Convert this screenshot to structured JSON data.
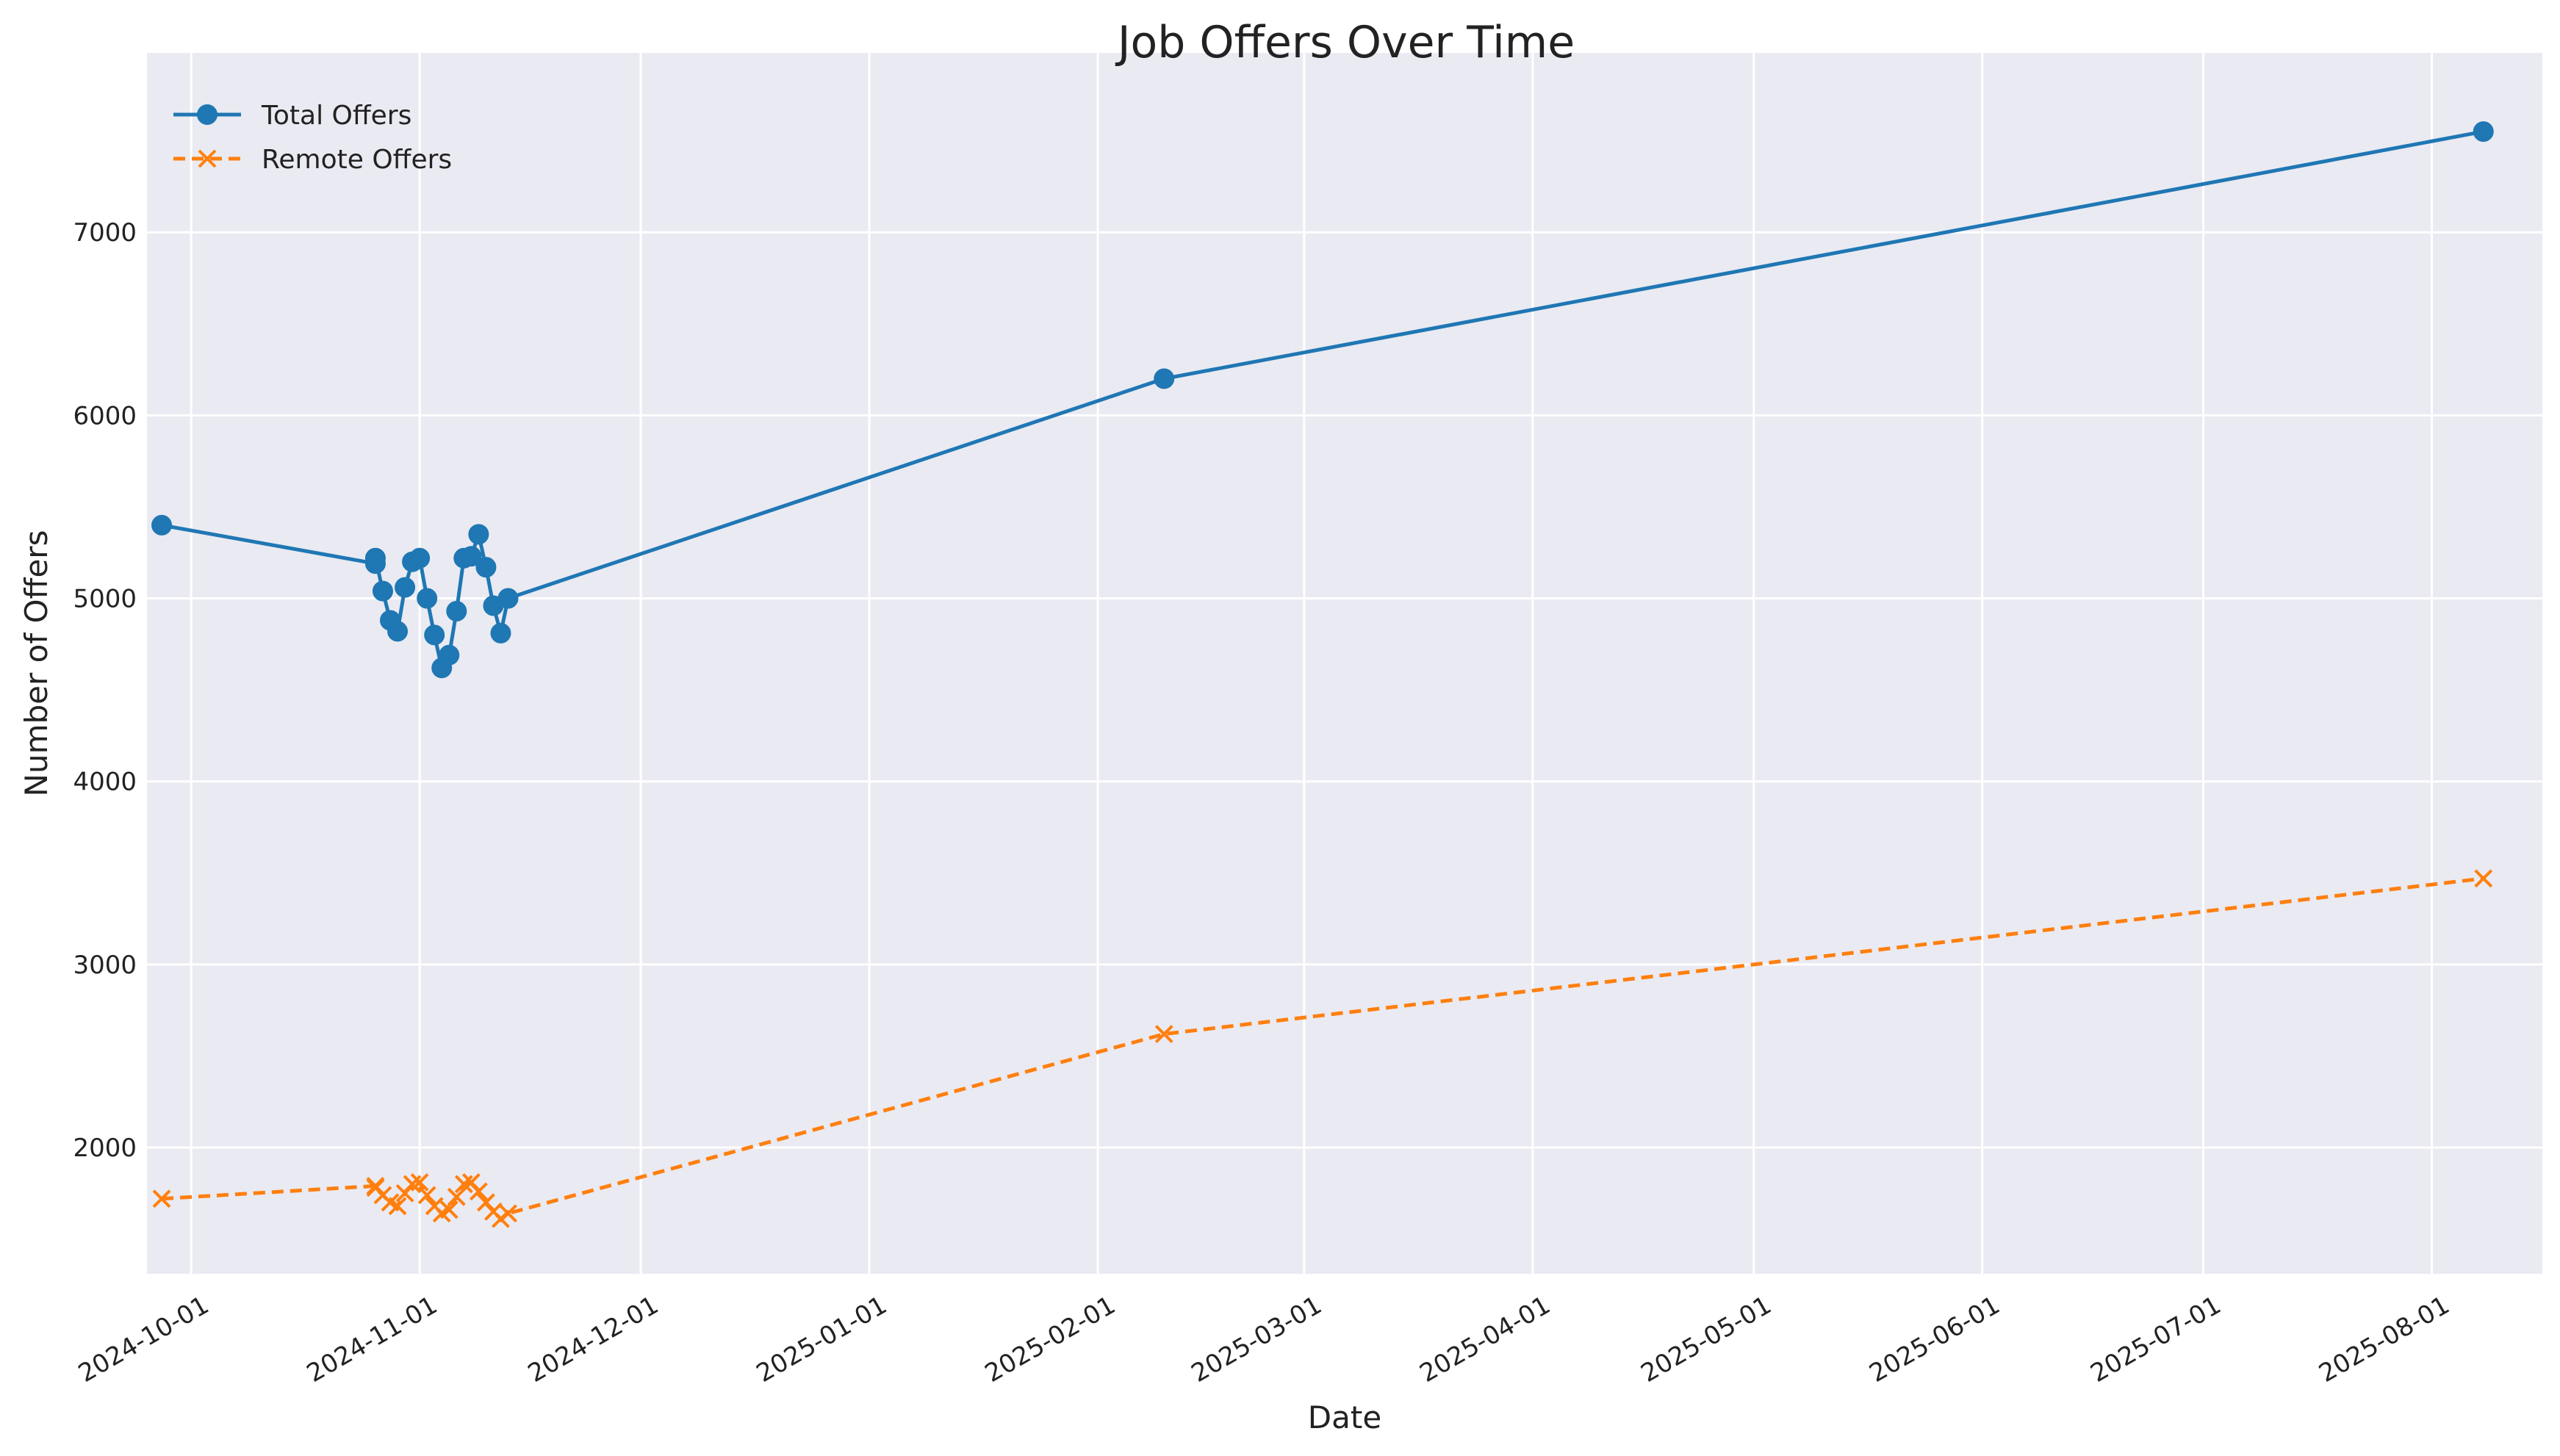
{
  "chart_data": {
    "type": "line",
    "title": "Job Offers Over Time",
    "xlabel": "Date",
    "ylabel": "Number of Offers",
    "x_type": "date",
    "xlim": [
      "2024-09-25",
      "2025-08-16"
    ],
    "ylim": [
      1310,
      7980
    ],
    "x_ticks": [
      "2024-10-01",
      "2024-11-01",
      "2024-12-01",
      "2025-01-01",
      "2025-02-01",
      "2025-03-01",
      "2025-04-01",
      "2025-05-01",
      "2025-06-01",
      "2025-07-01",
      "2025-08-01"
    ],
    "y_ticks": [
      2000,
      3000,
      4000,
      5000,
      6000,
      7000
    ],
    "grid": true,
    "legend_position": "top-left",
    "background": "#eaeaf2",
    "series": [
      {
        "name": "Total Offers",
        "color": "#1f77b4",
        "marker": "circle",
        "line_style": "solid",
        "points": [
          {
            "x": "2024-09-27",
            "y": 5400
          },
          {
            "x": "2024-10-26",
            "y": 5190
          },
          {
            "x": "2024-10-26",
            "y": 5220
          },
          {
            "x": "2024-10-27",
            "y": 5040
          },
          {
            "x": "2024-10-28",
            "y": 4880
          },
          {
            "x": "2024-10-29",
            "y": 4820
          },
          {
            "x": "2024-10-30",
            "y": 5060
          },
          {
            "x": "2024-10-31",
            "y": 5200
          },
          {
            "x": "2024-11-01",
            "y": 5220
          },
          {
            "x": "2024-11-02",
            "y": 5000
          },
          {
            "x": "2024-11-03",
            "y": 4800
          },
          {
            "x": "2024-11-04",
            "y": 4620
          },
          {
            "x": "2024-11-05",
            "y": 4690
          },
          {
            "x": "2024-11-06",
            "y": 4930
          },
          {
            "x": "2024-11-07",
            "y": 5220
          },
          {
            "x": "2024-11-08",
            "y": 5230
          },
          {
            "x": "2024-11-09",
            "y": 5350
          },
          {
            "x": "2024-11-10",
            "y": 5170
          },
          {
            "x": "2024-11-11",
            "y": 4960
          },
          {
            "x": "2024-11-12",
            "y": 4810
          },
          {
            "x": "2024-11-13",
            "y": 5000
          },
          {
            "x": "2025-02-10",
            "y": 6200
          },
          {
            "x": "2025-08-08",
            "y": 7550
          }
        ]
      },
      {
        "name": "Remote Offers",
        "color": "#ff7f0e",
        "marker": "x",
        "line_style": "dashed",
        "points": [
          {
            "x": "2024-09-27",
            "y": 1720
          },
          {
            "x": "2024-10-26",
            "y": 1790
          },
          {
            "x": "2024-10-26",
            "y": 1780
          },
          {
            "x": "2024-10-27",
            "y": 1740
          },
          {
            "x": "2024-10-28",
            "y": 1700
          },
          {
            "x": "2024-10-29",
            "y": 1680
          },
          {
            "x": "2024-10-30",
            "y": 1750
          },
          {
            "x": "2024-10-31",
            "y": 1800
          },
          {
            "x": "2024-11-01",
            "y": 1810
          },
          {
            "x": "2024-11-02",
            "y": 1740
          },
          {
            "x": "2024-11-03",
            "y": 1680
          },
          {
            "x": "2024-11-04",
            "y": 1640
          },
          {
            "x": "2024-11-05",
            "y": 1660
          },
          {
            "x": "2024-11-06",
            "y": 1730
          },
          {
            "x": "2024-11-07",
            "y": 1800
          },
          {
            "x": "2024-11-08",
            "y": 1810
          },
          {
            "x": "2024-11-09",
            "y": 1760
          },
          {
            "x": "2024-11-10",
            "y": 1700
          },
          {
            "x": "2024-11-11",
            "y": 1650
          },
          {
            "x": "2024-11-12",
            "y": 1610
          },
          {
            "x": "2024-11-13",
            "y": 1640
          },
          {
            "x": "2025-02-10",
            "y": 2620
          },
          {
            "x": "2025-08-08",
            "y": 3470
          }
        ]
      }
    ]
  }
}
